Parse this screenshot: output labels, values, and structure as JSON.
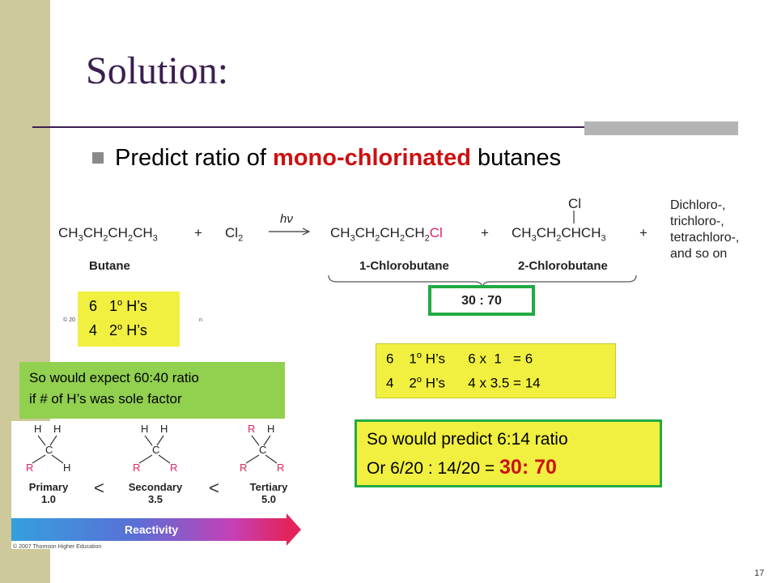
{
  "slide": {
    "title": "Solution:",
    "bullet": {
      "prefix": "Predict ratio of ",
      "highlight": "mono-chlorinated",
      "suffix": " butanes"
    },
    "page_number": "17"
  },
  "reaction": {
    "butane_formula": "CH3CH2CH2CH3",
    "plus": "+",
    "cl2": "Cl2",
    "condition": "hν",
    "product1_formula": "CH3CH2CH2CH2Cl",
    "product2_formula": "CH3CH2CHCH3",
    "product2_cl": "Cl",
    "other_products": [
      "Dichloro-,",
      "trichloro-,",
      "tetrachloro-,",
      "and so on"
    ],
    "butane_label": "Butane",
    "product1_label": "1-Chlorobutane",
    "product2_label": "2-Chlorobutane",
    "ratio": "30 : 70",
    "copyright": "© 20",
    "copyright_tail": "n"
  },
  "h_count_box": {
    "row1": {
      "n": "6",
      "deg": "1",
      "sup": "o",
      "unit": "H’s"
    },
    "row2": {
      "n": "4",
      "deg": "2",
      "sup": "o",
      "unit": "H’s"
    }
  },
  "calc_box": {
    "row1": {
      "n": "6",
      "deg": "1",
      "sup": "o",
      "unit": "H’s",
      "calc": "6 x  1   = 6"
    },
    "row2": {
      "n": "4",
      "deg": "2",
      "sup": "o",
      "unit": "H’s",
      "calc": "4 x 3.5 = 14"
    }
  },
  "expect_box": {
    "line1": "So would expect 60:40 ratio",
    "line2": "if # of H’s was sole factor"
  },
  "predict_box": {
    "line1": "So would predict 6:14 ratio",
    "line2_prefix": "Or   6/20 : 14/20  = ",
    "line2_result": "30: 70"
  },
  "reactivity": {
    "primary": {
      "name": "Primary",
      "value": "1.0"
    },
    "secondary": {
      "name": "Secondary",
      "value": "3.5"
    },
    "tertiary": {
      "name": "Tertiary",
      "value": "5.0"
    },
    "less_than": "<",
    "arrow_label": "Reactivity",
    "copyright": "© 2007 Thomson Higher Education"
  },
  "colors": {
    "title": "#3a1f50",
    "highlight_red": "#cc1111",
    "note_yellow": "#f1f040",
    "note_green": "#92d050",
    "frame_green": "#22aa44",
    "left_bar": "#cdc99a"
  }
}
